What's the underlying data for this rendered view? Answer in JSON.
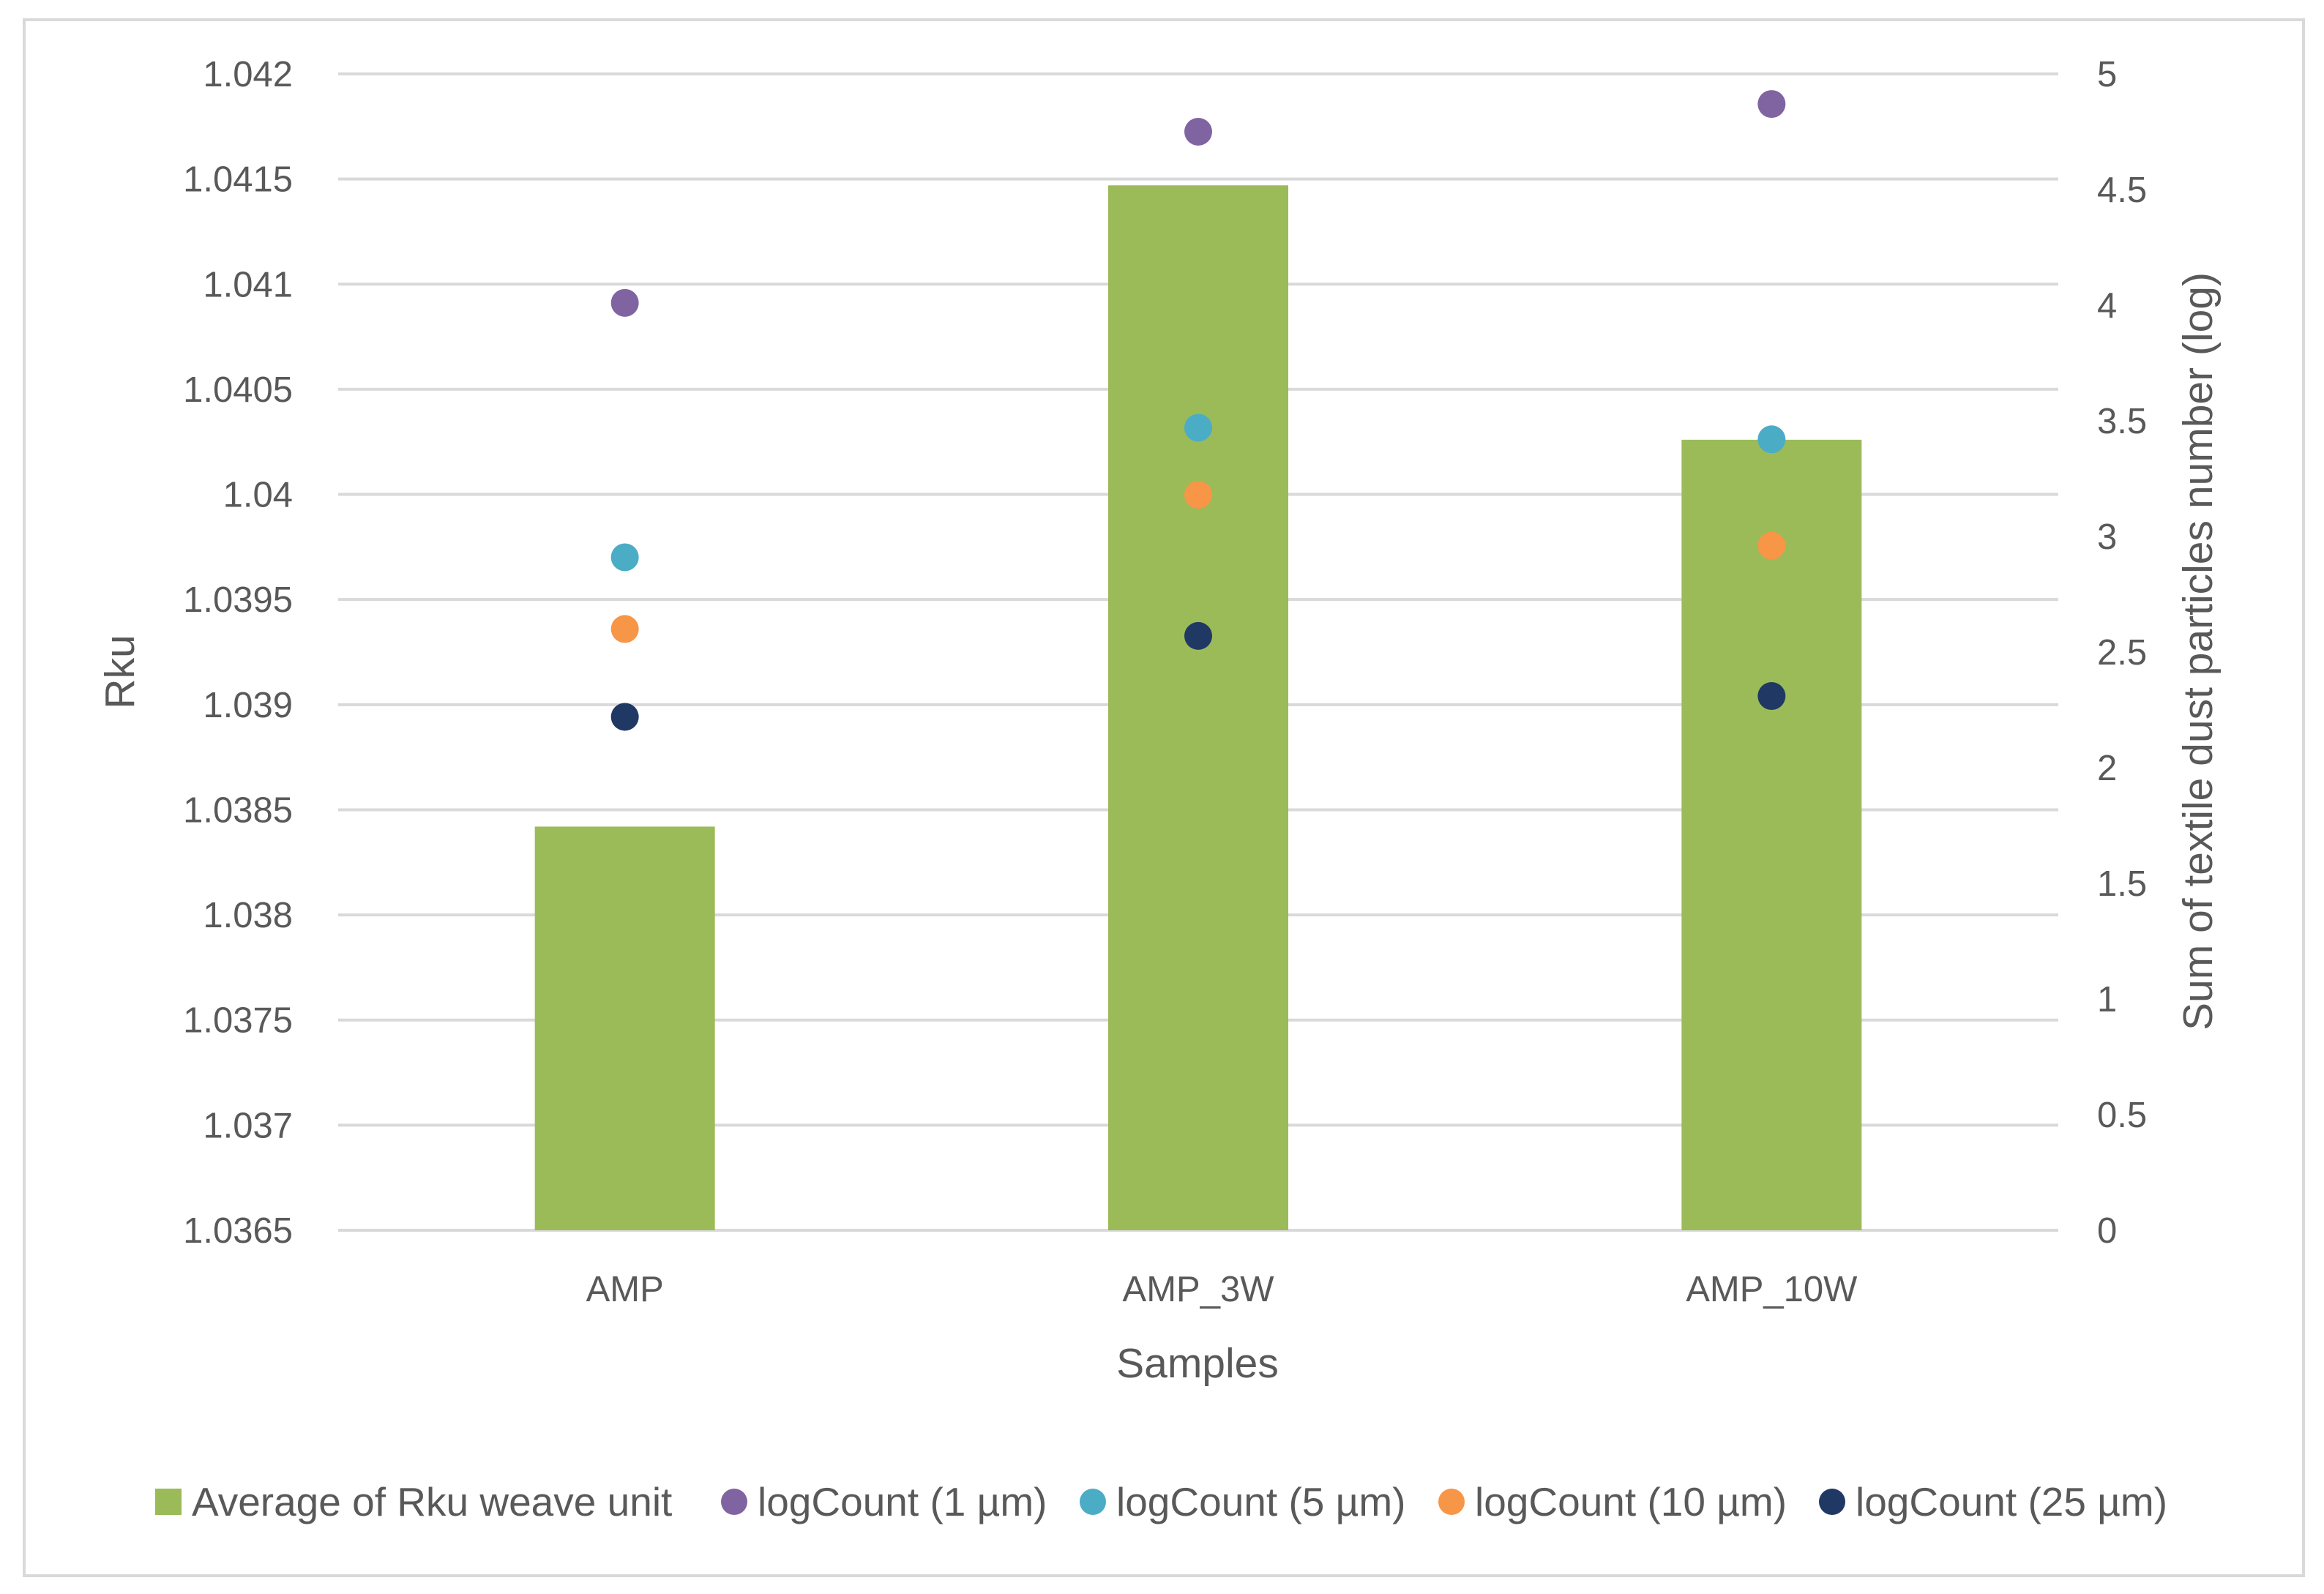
{
  "chart_data": {
    "type": "bar",
    "categories": [
      "AMP",
      "AMP_3W",
      "AMP_10W"
    ],
    "xlabel": "Samples",
    "ylabel": "Rku",
    "y2label": "Sum of textile dust particles number (log)",
    "ylim": [
      1.0365,
      1.042
    ],
    "y2lim": [
      0,
      5
    ],
    "yticks": [
      "1.0365",
      "1.037",
      "1.0375",
      "1.038",
      "1.0385",
      "1.039",
      "1.0395",
      "1.04",
      "1.0405",
      "1.041",
      "1.0415",
      "1.042"
    ],
    "y2ticks": [
      "0",
      "0.5",
      "1",
      "1.5",
      "2",
      "2.5",
      "3",
      "3.5",
      "4",
      "4.5",
      "5"
    ],
    "grid": true,
    "legend_position": "bottom",
    "bars": {
      "name": "Average of Rku weave unit",
      "axis": "left",
      "color": "#9bbb59",
      "values": [
        1.03842,
        1.04147,
        1.04026
      ]
    },
    "series": [
      {
        "name": "logCount (1 µm)",
        "axis": "right",
        "color": "#8064a2",
        "values": [
          4.01,
          4.75,
          4.87
        ]
      },
      {
        "name": "logCount (5 µm)",
        "axis": "right",
        "color": "#4bacc6",
        "values": [
          2.91,
          3.47,
          3.42
        ]
      },
      {
        "name": "logCount (10 µm)",
        "axis": "right",
        "color": "#f79646",
        "values": [
          2.6,
          3.18,
          2.96
        ]
      },
      {
        "name": "logCount (25 µm)",
        "axis": "right",
        "color": "#1f3864",
        "values": [
          2.22,
          2.57,
          2.31
        ]
      }
    ]
  }
}
